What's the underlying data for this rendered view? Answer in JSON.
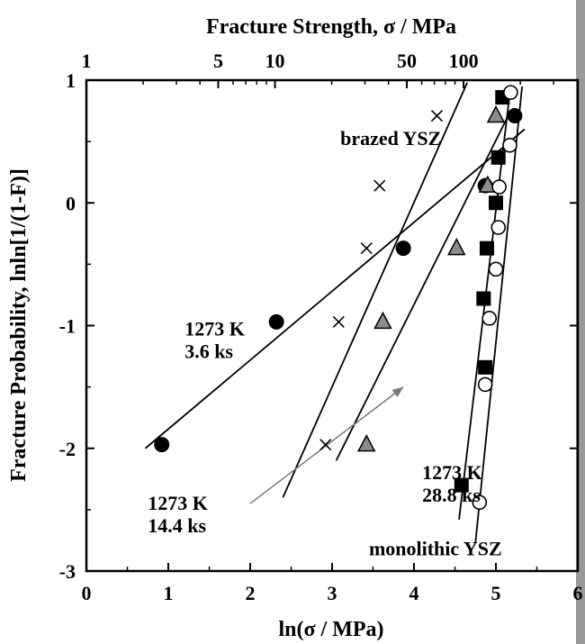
{
  "chart_data": {
    "type": "scatter",
    "title": "",
    "xlabel": "ln(σ / MPa)",
    "ylabel": "Fracture Probability, lnln[1/(1-F)]",
    "top_xlabel": "Fracture Strength, σ / MPa",
    "xlim": [
      0,
      6
    ],
    "ylim": [
      -3,
      1
    ],
    "x_ticks": [
      "0",
      "1",
      "2",
      "3",
      "4",
      "5",
      "6"
    ],
    "y_ticks": [
      "1",
      "0",
      "-1",
      "-2",
      "-3"
    ],
    "top_ticks": [
      {
        "label": "1",
        "value": 1
      },
      {
        "label": "5",
        "value": 5
      },
      {
        "label": "10",
        "value": 10
      },
      {
        "label": "50",
        "value": 50
      },
      {
        "label": "100",
        "value": 100
      }
    ],
    "grid": false,
    "series": [
      {
        "marker": "cross",
        "points": [
          [
            2.92,
            -1.97
          ],
          [
            3.08,
            -0.97
          ],
          [
            3.42,
            -0.37
          ],
          [
            3.58,
            0.14
          ],
          [
            4.28,
            0.71
          ]
        ],
        "fit": [
          [
            2.4,
            -2.4
          ],
          [
            4.65,
            0.98
          ]
        ]
      },
      {
        "marker": "filled-circle",
        "points": [
          [
            0.92,
            -1.97
          ],
          [
            2.32,
            -0.97
          ],
          [
            3.87,
            -0.37
          ],
          [
            4.87,
            0.14
          ],
          [
            5.23,
            0.71
          ]
        ],
        "fit": [
          [
            0.72,
            -2.0
          ],
          [
            5.35,
            0.6
          ]
        ]
      },
      {
        "marker": "gray-triangle",
        "points": [
          [
            3.42,
            -1.97
          ],
          [
            3.62,
            -0.97
          ],
          [
            4.52,
            -0.37
          ],
          [
            4.9,
            0.14
          ],
          [
            5.0,
            0.71
          ]
        ],
        "fit": [
          [
            3.05,
            -2.1
          ],
          [
            5.18,
            0.75
          ]
        ]
      },
      {
        "marker": "filled-square",
        "points": [
          [
            4.58,
            -2.3
          ],
          [
            4.87,
            -1.34
          ],
          [
            4.85,
            -0.78
          ],
          [
            4.89,
            -0.37
          ],
          [
            5.0,
            0.0
          ],
          [
            5.03,
            0.37
          ],
          [
            5.08,
            0.86
          ]
        ],
        "fit": [
          [
            4.55,
            -2.58
          ],
          [
            5.18,
            0.95
          ]
        ]
      },
      {
        "marker": "open-circle",
        "points": [
          [
            4.8,
            -2.44
          ],
          [
            4.87,
            -1.48
          ],
          [
            4.92,
            -0.94
          ],
          [
            5.0,
            -0.54
          ],
          [
            5.03,
            -0.2
          ],
          [
            5.04,
            0.13
          ],
          [
            5.17,
            0.47
          ],
          [
            5.18,
            0.9
          ]
        ],
        "fit": [
          [
            4.75,
            -2.77
          ],
          [
            5.32,
            0.95
          ]
        ]
      }
    ],
    "annotations": [
      {
        "lines": [
          "brazed YSZ"
        ],
        "at": [
          3.1,
          0.47
        ]
      },
      {
        "lines": [
          "1273 K",
          "3.6 ks"
        ],
        "at": [
          1.2,
          -1.08
        ]
      },
      {
        "lines": [
          "1273 K",
          "14.4 ks"
        ],
        "at": [
          0.75,
          -2.5
        ]
      },
      {
        "lines": [
          "1273 K",
          "28.8 ks"
        ],
        "at": [
          4.1,
          -2.25
        ]
      },
      {
        "lines": [
          "monolithic YSZ"
        ],
        "at": [
          3.45,
          -2.87
        ]
      }
    ],
    "arrow": {
      "from": [
        2.0,
        -2.45
      ],
      "to": [
        3.87,
        -1.5
      ]
    }
  }
}
